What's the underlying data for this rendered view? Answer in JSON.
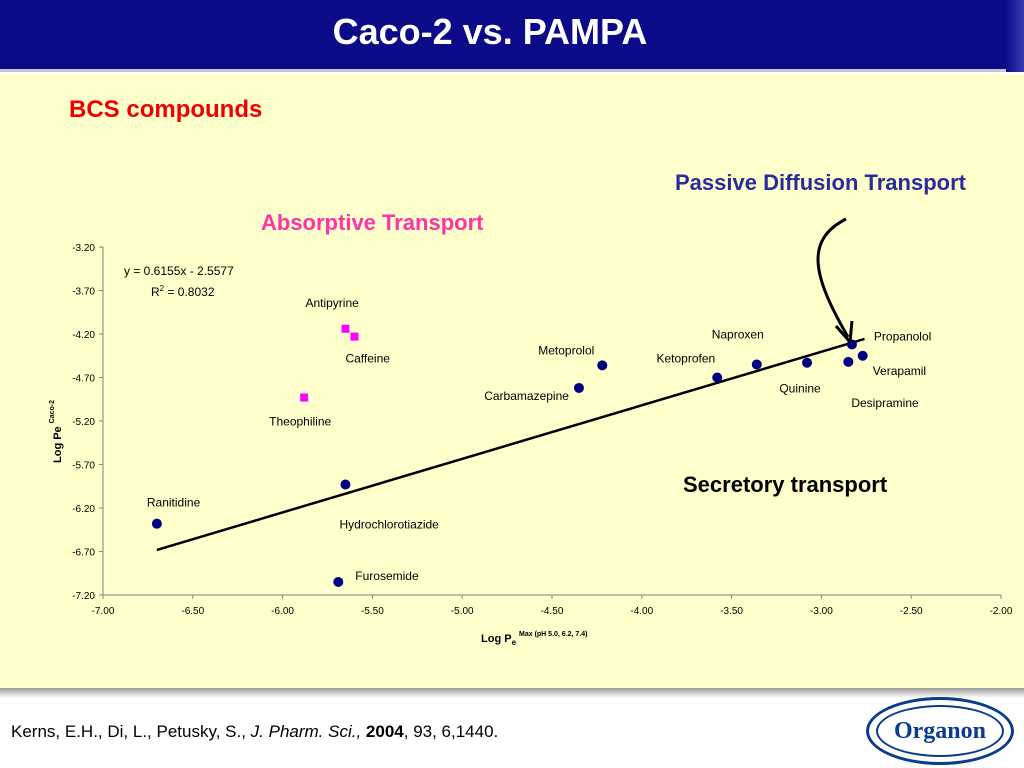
{
  "slide": {
    "title": "Caco-2 vs. PAMPA",
    "subtitle": "BCS compounds",
    "passive_label": "Passive Diffusion Transport",
    "absorptive_label": "Absorptive Transport",
    "secretory_label": "Secretory transport"
  },
  "citation": {
    "authors": "Kerns, E.H., Di, L., Petusky, S., ",
    "journal": "J. Pharm. Sci.,",
    "year": "2004",
    "rest": ", 93, 6,1440."
  },
  "logo": {
    "text": "Organon"
  },
  "colors": {
    "title_bar": "#0b0b8a",
    "background": "#ffffcc",
    "subtitle": "#ee0000",
    "passive_label": "#2b2b9c",
    "absorptive_label": "#ff33aa",
    "passive_marker": "#000080",
    "absorptive_marker": "#ff00ff"
  },
  "chart_data": {
    "type": "scatter",
    "xlabel": "Log P",
    "xlabel_sub": "e",
    "xlabel_sup": "Max (pH 5.0, 6.2, 7.4)",
    "ylabel": "Log Pe",
    "ylabel_sup": "Caco-2",
    "xlim": [
      -7.0,
      -2.0
    ],
    "ylim": [
      -7.2,
      -3.2
    ],
    "xticks": [
      "-7.00",
      "-6.50",
      "-6.00",
      "-5.50",
      "-5.00",
      "-4.50",
      "-4.00",
      "-3.50",
      "-3.00",
      "-2.50",
      "-2.00"
    ],
    "yticks": [
      "-3.20",
      "-3.70",
      "-4.20",
      "-4.70",
      "-5.20",
      "-5.70",
      "-6.20",
      "-6.70",
      "-7.20"
    ],
    "grid": false,
    "equation": "y = 0.6155x - 2.5577",
    "r2_label": "R",
    "r2_sup": "2",
    "r2_value": " = 0.8032",
    "trendline": {
      "slope": 0.6155,
      "intercept": -2.5577,
      "x_range": [
        -6.7,
        -2.76
      ]
    },
    "series": [
      {
        "marker": "circle",
        "color": "#000080",
        "points": [
          {
            "label": "Ranitidine",
            "x": -6.7,
            "y": -6.38
          },
          {
            "label": "Hydrochlorotiazide",
            "x": -5.65,
            "y": -5.93
          },
          {
            "label": "Furosemide",
            "x": -5.69,
            "y": -7.05
          },
          {
            "label": "Carbamazepine",
            "x": -4.35,
            "y": -4.82
          },
          {
            "label": "Metoprolol",
            "x": -4.22,
            "y": -4.56
          },
          {
            "label": "Ketoprofen",
            "x": -3.58,
            "y": -4.7
          },
          {
            "label": "Naproxen",
            "x": -3.36,
            "y": -4.55
          },
          {
            "label": "Quinine",
            "x": -3.08,
            "y": -4.53
          },
          {
            "label": "Desipramine",
            "x": -2.85,
            "y": -4.52
          },
          {
            "label": "Propanolol",
            "x": -2.83,
            "y": -4.32
          },
          {
            "label": "Verapamil",
            "x": -2.77,
            "y": -4.45
          }
        ]
      },
      {
        "marker": "square",
        "color": "#ff00ff",
        "points": [
          {
            "label": "Antipyrine",
            "x": -5.65,
            "y": -4.14
          },
          {
            "label": "Caffeine",
            "x": -5.6,
            "y": -4.23
          },
          {
            "label": "Theophiline",
            "x": -5.88,
            "y": -4.93
          }
        ]
      }
    ]
  }
}
